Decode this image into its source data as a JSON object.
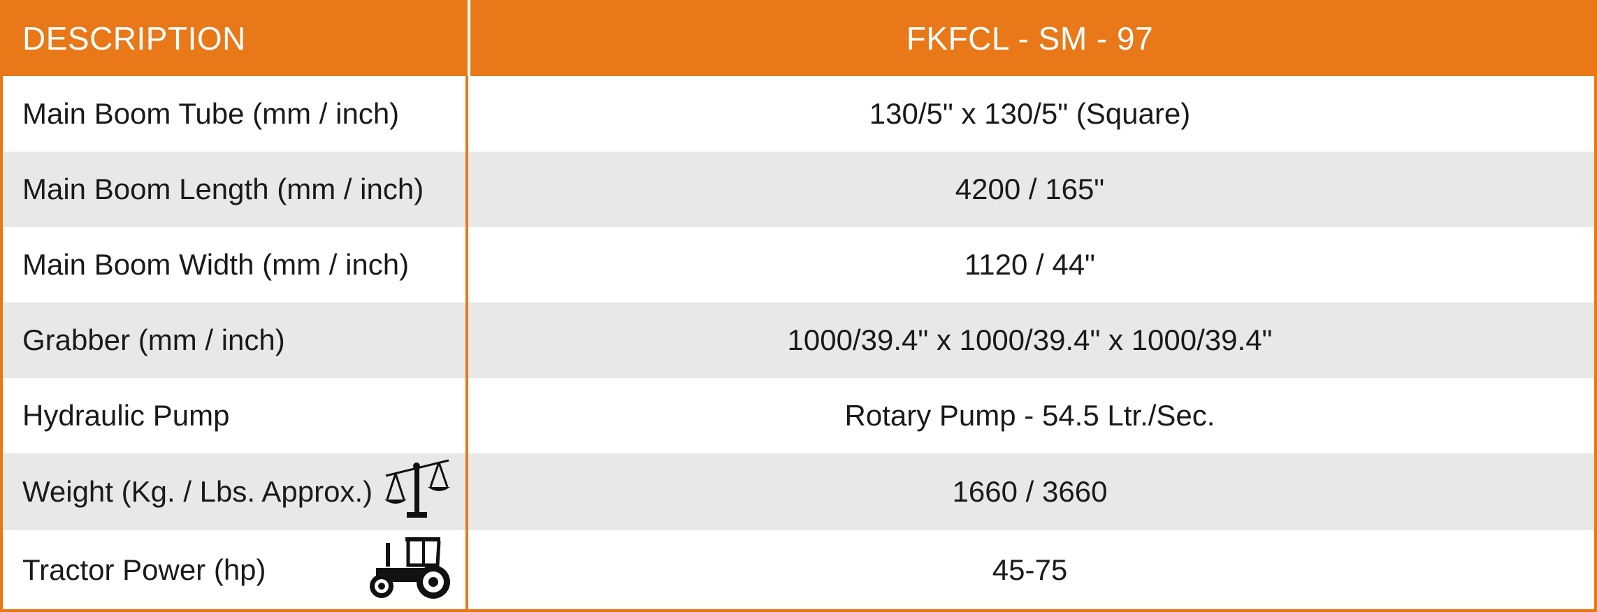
{
  "header": {
    "description_label": "DESCRIPTION",
    "model_label": "FKFCL - SM - 97"
  },
  "rows": [
    {
      "label": "Main Boom Tube (mm / inch)",
      "value": "130/5\" x 130/5\" (Square)"
    },
    {
      "label": "Main Boom Length (mm / inch)",
      "value": "4200 / 165\""
    },
    {
      "label": "Main Boom Width (mm / inch)",
      "value": "1120 / 44\""
    },
    {
      "label": "Grabber (mm / inch)",
      "value": "1000/39.4\" x 1000/39.4\" x 1000/39.4\""
    },
    {
      "label": "Hydraulic Pump",
      "value": "Rotary Pump - 54.5 Ltr./Sec."
    },
    {
      "label": "Weight (Kg. / Lbs. Approx.)",
      "value": "1660 / 3660",
      "icon": "balance-scale-icon"
    },
    {
      "label": "Tractor Power (hp)",
      "value": "45-75",
      "icon": "tractor-icon"
    }
  ],
  "colors": {
    "accent": "#e87818",
    "stripe": "#e8e8e8",
    "header_text": "#ffffff"
  }
}
